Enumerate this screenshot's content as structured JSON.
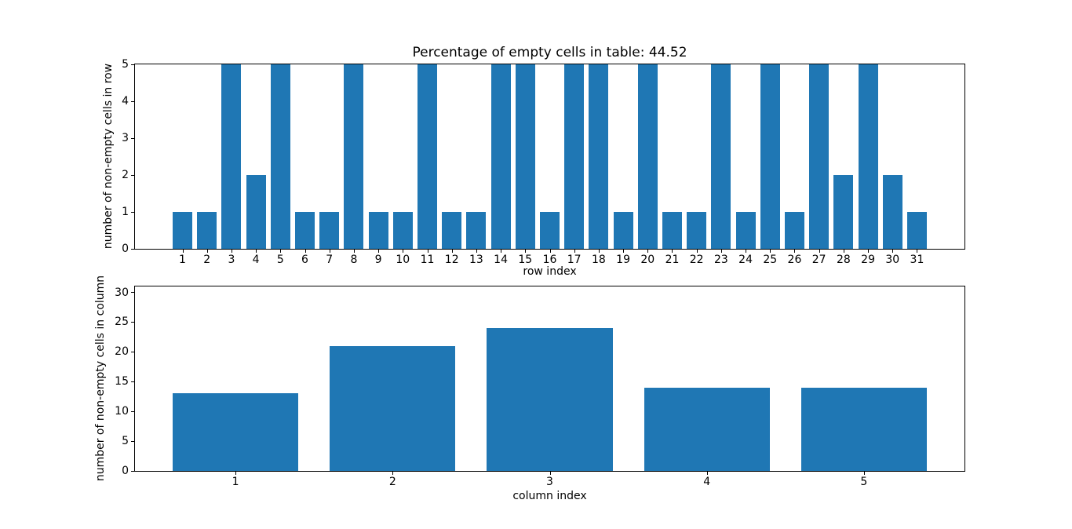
{
  "figure": {
    "background": "#ffffff",
    "text_color": "#000000",
    "spine_color": "#000000"
  },
  "chart_data": [
    {
      "type": "bar",
      "title": "Percentage of empty cells in table: 44.52",
      "xlabel": "row index",
      "ylabel": "number of non-empty cells in row",
      "categories": [
        "1",
        "2",
        "3",
        "4",
        "5",
        "6",
        "7",
        "8",
        "9",
        "10",
        "11",
        "12",
        "13",
        "14",
        "15",
        "16",
        "17",
        "18",
        "19",
        "20",
        "21",
        "22",
        "23",
        "24",
        "25",
        "26",
        "27",
        "28",
        "29",
        "30",
        "31"
      ],
      "values": [
        1,
        1,
        5,
        2,
        5,
        1,
        1,
        5,
        1,
        1,
        5,
        1,
        1,
        5,
        5,
        1,
        5,
        5,
        1,
        5,
        1,
        1,
        5,
        1,
        5,
        1,
        5,
        2,
        5,
        2,
        1
      ],
      "ylim": [
        0,
        5
      ],
      "yticks": [
        0,
        1,
        2,
        3,
        4,
        5
      ],
      "bar_color": "#1f77b4",
      "bar_width_fraction": 0.8,
      "grid": false,
      "legend": null
    },
    {
      "type": "bar",
      "title": "",
      "xlabel": "column index",
      "ylabel": "number of non-empty cells in column",
      "categories": [
        "1",
        "2",
        "3",
        "4",
        "5"
      ],
      "values": [
        13,
        21,
        24,
        14,
        14
      ],
      "ylim": [
        0,
        31
      ],
      "yticks": [
        0,
        5,
        10,
        15,
        20,
        25,
        30
      ],
      "bar_color": "#1f77b4",
      "bar_width_fraction": 0.8,
      "grid": false,
      "legend": null
    }
  ]
}
